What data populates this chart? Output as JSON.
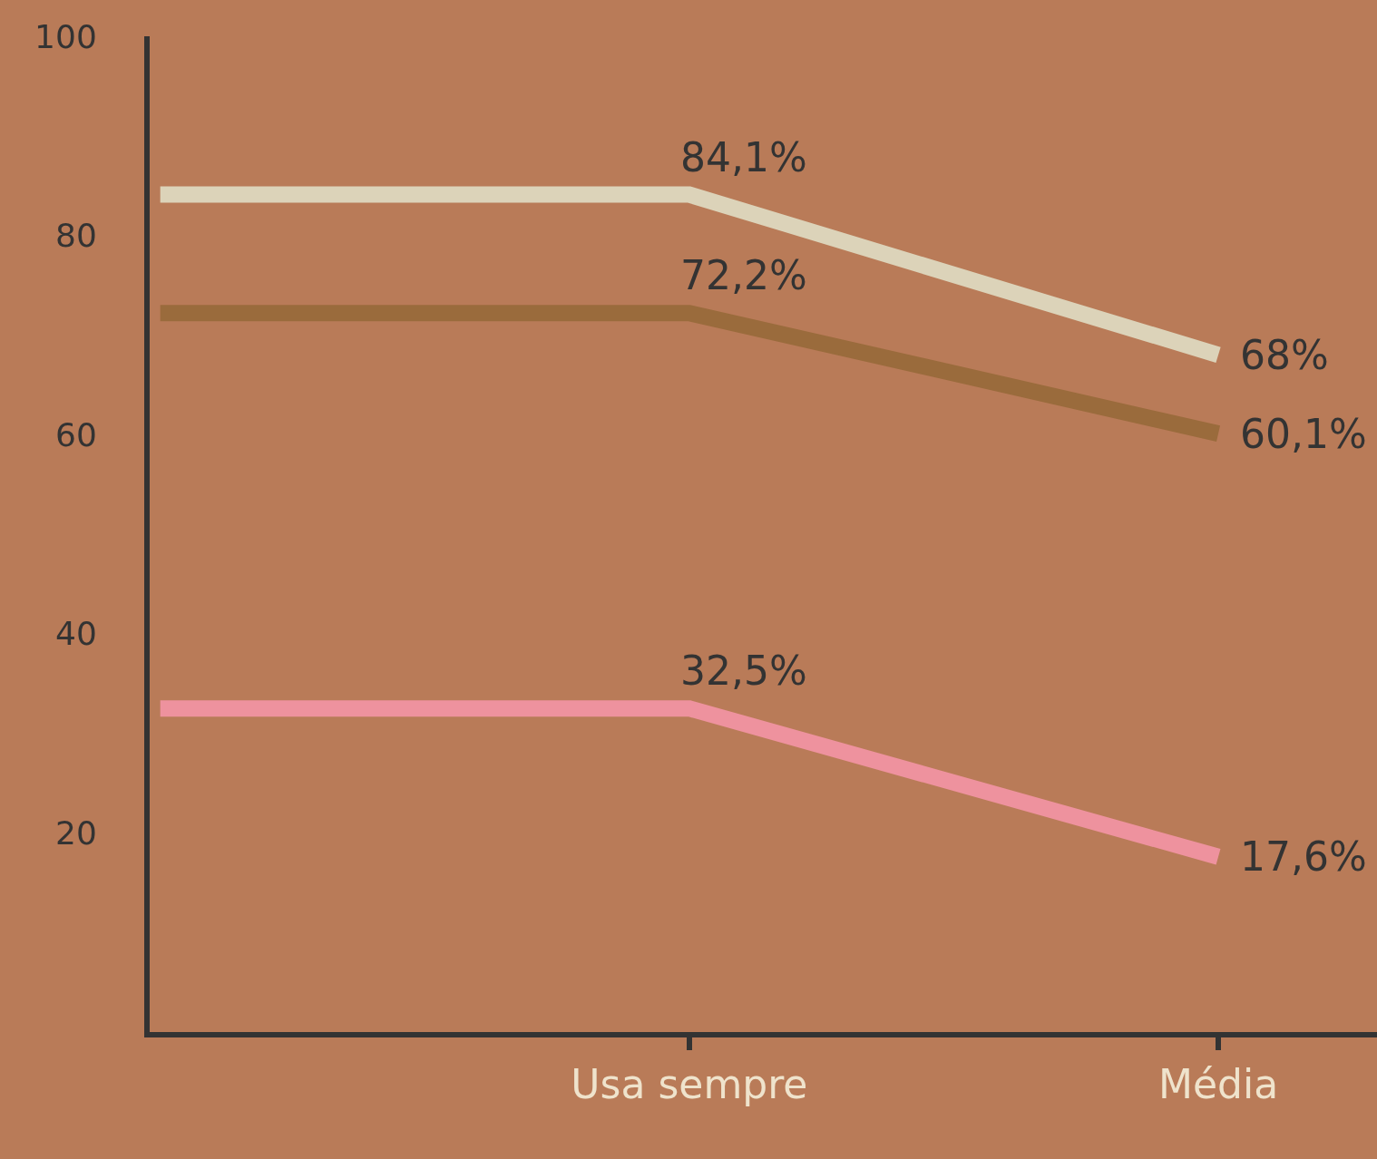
{
  "chart_data": {
    "type": "line",
    "categories": [
      null,
      "Usa sempre",
      "Média"
    ],
    "series": [
      {
        "color": "#dcd3b9",
        "values": [
          84.1,
          84.1,
          68
        ],
        "value_labels": [
          null,
          "84,1%",
          "68%"
        ]
      },
      {
        "color": "#9a6b3c",
        "values": [
          72.2,
          72.2,
          60.1
        ],
        "value_labels": [
          null,
          "72,2%",
          "60,1%"
        ]
      },
      {
        "color": "#ee929e",
        "values": [
          32.5,
          32.5,
          17.6
        ],
        "value_labels": [
          null,
          "32,5%",
          "17,6%"
        ]
      }
    ],
    "ylim": [
      0,
      100
    ],
    "yticks": [
      20,
      40,
      60,
      80,
      100
    ],
    "grid": false,
    "marker": "none",
    "line_style": "solid"
  }
}
